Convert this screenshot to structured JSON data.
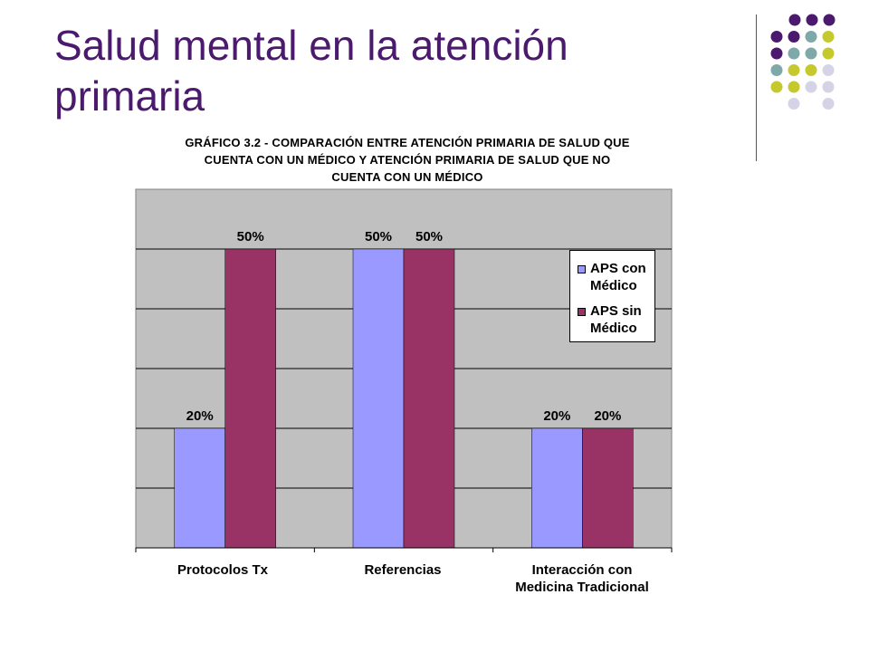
{
  "slide": {
    "title_line1": "Salud mental en la atención",
    "title_line2": "primaria"
  },
  "colors": {
    "title": "#4b1a6e",
    "dot_purple": "#4b1a6e",
    "dot_teal": "#7fa8a8",
    "dot_lime": "#c6c92d",
    "dot_lavender": "#d4d4e6",
    "plot_background": "#c0c0c0",
    "series_con": "#9999ff",
    "series_sin": "#993366"
  },
  "chart_data": {
    "type": "bar",
    "title_lines": [
      "GRÁFICO 3.2 - COMPARACIÓN ENTRE ATENCIÓN PRIMARIA DE SALUD QUE",
      "CUENTA CON UN MÉDICO Y ATENCIÓN PRIMARIA DE SALUD QUE NO",
      "CUENTA CON UN MÉDICO"
    ],
    "categories": [
      [
        "Protocolos Tx"
      ],
      [
        "Referencias"
      ],
      [
        "Interacción con",
        "Medicina Tradicional"
      ]
    ],
    "series": [
      {
        "name": [
          "APS con",
          "Médico"
        ],
        "values": [
          20,
          50,
          20
        ],
        "labels": [
          "20%",
          "50%",
          "20%"
        ],
        "color": "#9999ff"
      },
      {
        "name": [
          "APS sin",
          "Médico"
        ],
        "values": [
          50,
          50,
          20
        ],
        "labels": [
          "50%",
          "50%",
          "20%"
        ],
        "color": "#993366"
      }
    ],
    "ylim": [
      0,
      60
    ],
    "grid": true,
    "legend_position": "right"
  }
}
